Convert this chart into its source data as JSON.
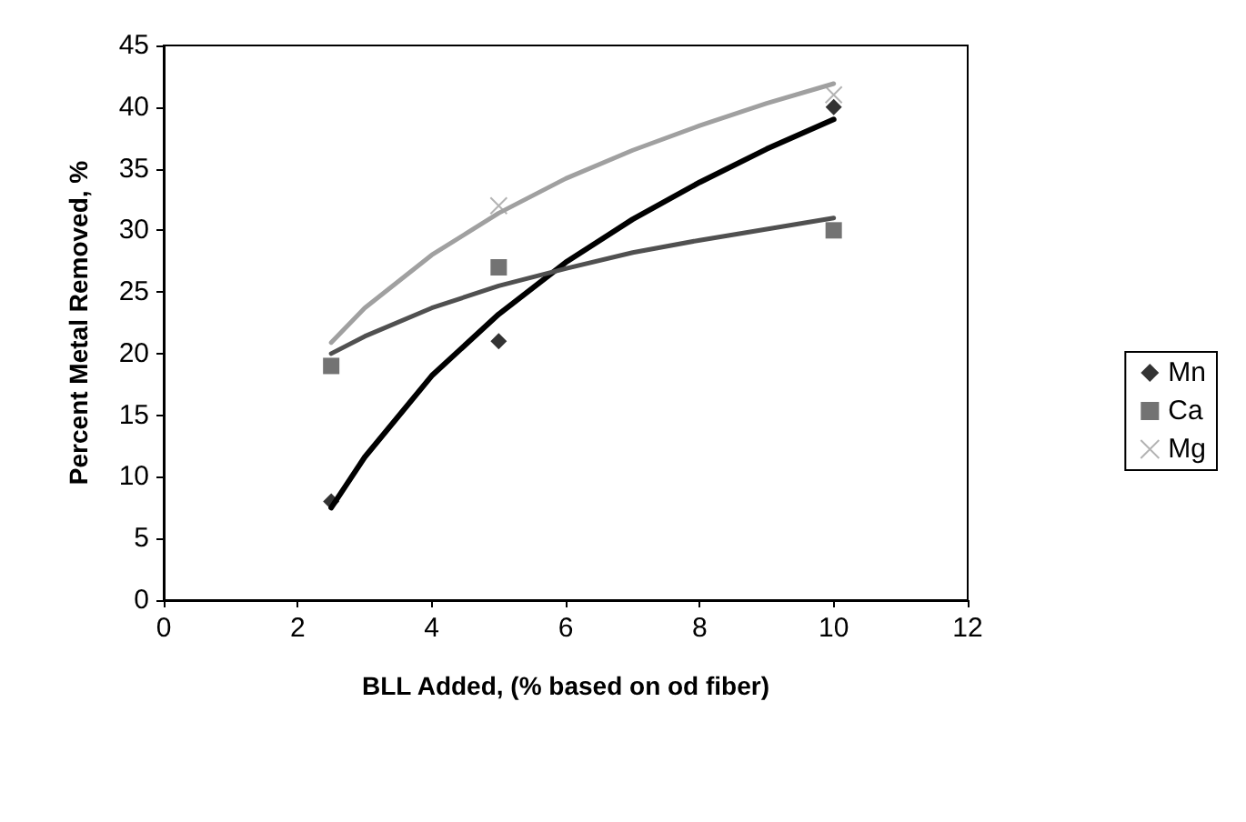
{
  "chart_data": {
    "type": "scatter",
    "xlabel": "BLL Added, (% based on od fiber)",
    "ylabel": "Percent Metal Removed, %",
    "x": [
      2.5,
      5,
      10
    ],
    "series": [
      {
        "name": "Mn",
        "color": "#000000",
        "marker": "diamond",
        "values": [
          8,
          21,
          40
        ]
      },
      {
        "name": "Ca",
        "color": "#505050",
        "marker": "square",
        "values": [
          19,
          27,
          30
        ]
      },
      {
        "name": "Mg",
        "color": "#a0a0a0",
        "marker": "cross",
        "values": [
          null,
          32,
          41
        ]
      },
      {
        "type": "line",
        "color": "#000000",
        "marker": "none",
        "x": [
          2.5,
          3,
          4,
          5,
          6,
          7,
          8,
          9,
          10
        ],
        "values": [
          7.5,
          11.6,
          18.2,
          23.2,
          27.4,
          30.9,
          33.9,
          36.6,
          39.0
        ]
      },
      {
        "type": "line",
        "color": "#505050",
        "marker": "none",
        "x": [
          2.5,
          3,
          4,
          5,
          6,
          7,
          8,
          9,
          10
        ],
        "values": [
          20.0,
          21.4,
          23.7,
          25.5,
          26.9,
          28.2,
          29.2,
          30.1,
          31.0
        ]
      },
      {
        "type": "line",
        "color": "#a0a0a0",
        "marker": "none",
        "x": [
          2.5,
          3,
          4,
          5,
          6,
          7,
          8,
          9,
          10
        ],
        "values": [
          20.9,
          23.7,
          28.0,
          31.4,
          34.2,
          36.5,
          38.5,
          40.3,
          41.9
        ]
      }
    ],
    "xlim": [
      0,
      12
    ],
    "xticks": [
      0,
      2,
      4,
      6,
      8,
      10,
      12
    ],
    "ylim": [
      0,
      45
    ],
    "yticks": [
      0,
      5,
      10,
      15,
      20,
      25,
      30,
      35,
      40,
      45
    ],
    "grid": false,
    "legend": "right"
  }
}
